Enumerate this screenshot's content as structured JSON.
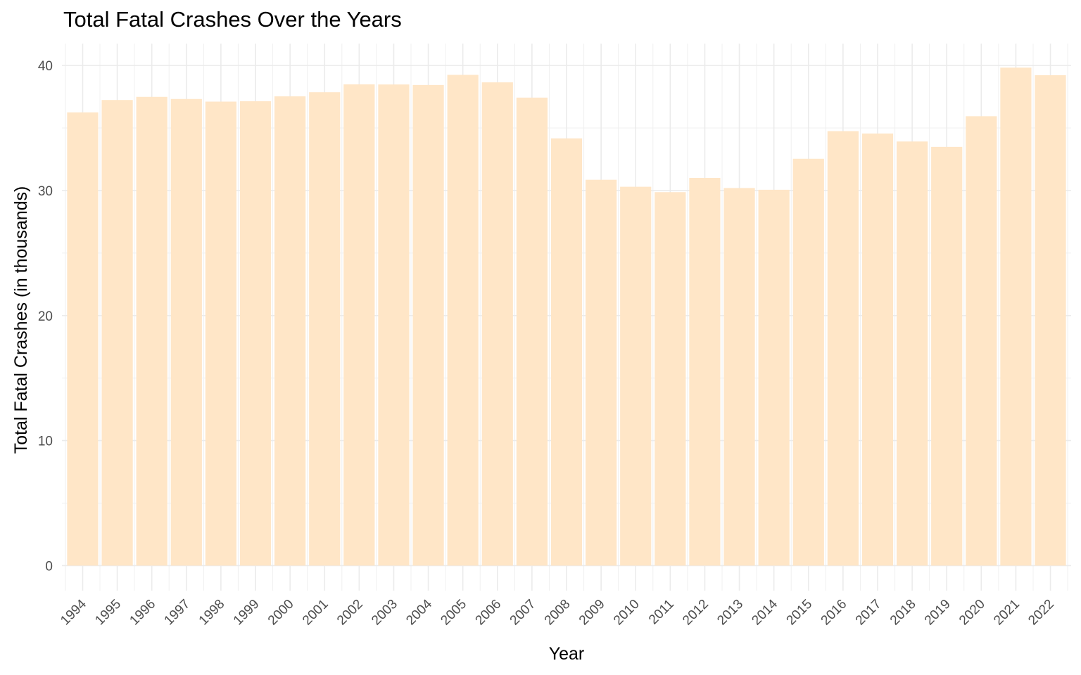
{
  "chart_data": {
    "type": "bar",
    "title": "Total Fatal Crashes Over the Years",
    "xlabel": "Year",
    "ylabel": "Total Fatal Crashes (in thousands)",
    "categories": [
      "1994",
      "1995",
      "1996",
      "1997",
      "1998",
      "1999",
      "2000",
      "2001",
      "2002",
      "2003",
      "2004",
      "2005",
      "2006",
      "2007",
      "2008",
      "2009",
      "2010",
      "2011",
      "2012",
      "2013",
      "2014",
      "2015",
      "2016",
      "2017",
      "2018",
      "2019",
      "2020",
      "2021",
      "2022"
    ],
    "values": [
      36.25,
      37.24,
      37.49,
      37.32,
      37.11,
      37.14,
      37.53,
      37.86,
      38.49,
      38.48,
      38.44,
      39.25,
      38.65,
      37.43,
      34.17,
      30.86,
      30.3,
      29.87,
      31.01,
      30.2,
      30.06,
      32.54,
      34.75,
      34.56,
      33.92,
      33.49,
      35.94,
      39.83,
      39.22
    ],
    "yticks": [
      "0",
      "10",
      "20",
      "30",
      "40"
    ],
    "ylim": [
      -2,
      41.75
    ],
    "bar_color": "#ffe6c7",
    "grid": true,
    "legend": "none"
  }
}
